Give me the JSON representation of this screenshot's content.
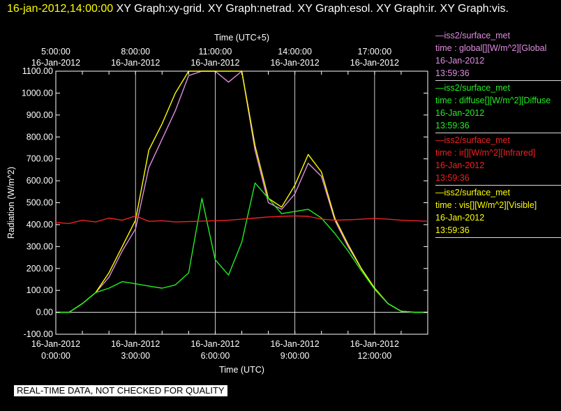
{
  "header": {
    "timestamp": "16-jan-2012,14:00:00",
    "graphs": "  XY Graph:xy-grid.  XY Graph:netrad.  XY Graph:esol.  XY Graph:ir.  XY Graph:vis."
  },
  "colors": {
    "global": "#e08ee0",
    "diffuse": "#22ee22",
    "ir": "#ee2222",
    "vis": "#ffff00"
  },
  "legend": [
    {
      "color": "#e08ee0",
      "source": "—iss2/surface_met",
      "var": "time : global[][W/m^2][Global",
      "date": "16-Jan-2012",
      "time": "13:59:36"
    },
    {
      "color": "#22ee22",
      "source": "—iss2/surface_met",
      "var": "time : diffuse[][W/m^2][Diffuse",
      "date": "16-Jan-2012",
      "time": "13:59:36"
    },
    {
      "color": "#ee2222",
      "source": "—iss2/surface_met",
      "var": "time : ir[][W/m^2][Infrared]",
      "date": "16-Jan-2012",
      "time": "13:59:36"
    },
    {
      "color": "#ffff00",
      "source": "—iss2/surface_met",
      "var": "time : vis[][W/m^2][Visible]",
      "date": "16-Jan-2012",
      "time": "13:59:36"
    }
  ],
  "warning": "REAL-TIME DATA, NOT CHECKED FOR QUALITY",
  "chart_data": {
    "type": "line",
    "xlabel": "Time (UTC)",
    "x2label": "Time (UTC+5)",
    "ylabel": "Radiation (W/m^2)",
    "x_unit": "hours UTC on 16-Jan-2012",
    "xlim": [
      0,
      14
    ],
    "ylim": [
      -100,
      1100
    ],
    "yticks": [
      -100,
      0,
      100,
      200,
      300,
      400,
      500,
      600,
      700,
      800,
      900,
      1000,
      1100
    ],
    "ytick_labels": [
      "-100.00",
      "0.00",
      "100.00",
      "200.00",
      "300.00",
      "400.00",
      "500.00",
      "600.00",
      "700.00",
      "800.00",
      "900.00",
      "1000.00",
      "1100.00"
    ],
    "xticks": [
      {
        "x": 0,
        "date": "16-Jan-2012",
        "time": "0:00:00"
      },
      {
        "x": 3,
        "date": "16-Jan-2012",
        "time": "3:00:00"
      },
      {
        "x": 6,
        "date": "16-Jan-2012",
        "time": "6:00:00"
      },
      {
        "x": 9,
        "date": "16-Jan-2012",
        "time": "9:00:00"
      },
      {
        "x": 12,
        "date": "16-Jan-2012",
        "time": "12:00:00"
      }
    ],
    "x2ticks": [
      {
        "x": 0,
        "time": "5:00:00",
        "date": "16-Jan-2012"
      },
      {
        "x": 3,
        "time": "8:00:00",
        "date": "16-Jan-2012"
      },
      {
        "x": 6,
        "time": "11:00:00",
        "date": "16-Jan-2012"
      },
      {
        "x": 9,
        "time": "14:00:00",
        "date": "16-Jan-2012"
      },
      {
        "x": 12,
        "time": "17:00:00",
        "date": "16-Jan-2012"
      }
    ],
    "grid": true,
    "series": [
      {
        "name": "global",
        "color": "#e08ee0",
        "x": [
          0,
          0.5,
          1,
          1.5,
          2,
          2.5,
          3,
          3.5,
          4,
          4.5,
          5,
          5.5,
          6,
          6.5,
          7,
          7.5,
          8,
          8.5,
          9,
          9.5,
          10,
          10.5,
          11,
          11.5,
          12,
          12.5,
          13,
          13.5,
          14
        ],
        "y": [
          0,
          0,
          40,
          90,
          160,
          280,
          380,
          660,
          790,
          920,
          1080,
          1100,
          1100,
          1050,
          1100,
          740,
          500,
          470,
          540,
          680,
          620,
          420,
          300,
          200,
          110,
          40,
          5,
          0,
          0
        ]
      },
      {
        "name": "diffuse",
        "color": "#22ee22",
        "x": [
          0,
          0.5,
          1,
          1.5,
          2,
          2.5,
          3,
          3.5,
          4,
          4.5,
          5,
          5.5,
          6,
          6.5,
          7,
          7.5,
          8,
          8.5,
          9,
          9.5,
          10,
          10.5,
          11,
          11.5,
          12,
          12.5,
          13,
          13.5,
          14
        ],
        "y": [
          0,
          0,
          40,
          90,
          110,
          140,
          130,
          120,
          110,
          125,
          180,
          520,
          240,
          170,
          320,
          590,
          520,
          450,
          460,
          470,
          430,
          360,
          280,
          190,
          105,
          40,
          5,
          0,
          0
        ]
      },
      {
        "name": "ir",
        "color": "#ee2222",
        "x": [
          0,
          0.5,
          1,
          1.5,
          2,
          2.5,
          3,
          3.5,
          4,
          4.5,
          5,
          5.5,
          6,
          6.5,
          7,
          7.5,
          8,
          8.5,
          9,
          9.5,
          10,
          10.5,
          11,
          11.5,
          12,
          12.5,
          13,
          13.5,
          14
        ],
        "y": [
          410,
          405,
          420,
          412,
          430,
          420,
          440,
          415,
          418,
          412,
          414,
          416,
          418,
          420,
          425,
          430,
          435,
          438,
          440,
          438,
          425,
          420,
          422,
          425,
          428,
          425,
          420,
          418,
          415
        ]
      },
      {
        "name": "vis",
        "color": "#ffff00",
        "x": [
          0,
          0.5,
          1,
          1.5,
          2,
          2.5,
          3,
          3.5,
          4,
          4.5,
          5,
          5.5,
          6,
          6.5,
          7,
          7.5,
          8,
          8.5,
          9,
          9.5,
          10,
          10.5,
          11,
          11.5,
          12,
          12.5,
          13,
          13.5,
          14
        ],
        "y": [
          0,
          0,
          40,
          90,
          180,
          300,
          420,
          740,
          860,
          1000,
          1100,
          1100,
          1100,
          1100,
          1100,
          760,
          520,
          480,
          580,
          720,
          640,
          430,
          310,
          200,
          110,
          40,
          5,
          0,
          0
        ]
      }
    ]
  }
}
